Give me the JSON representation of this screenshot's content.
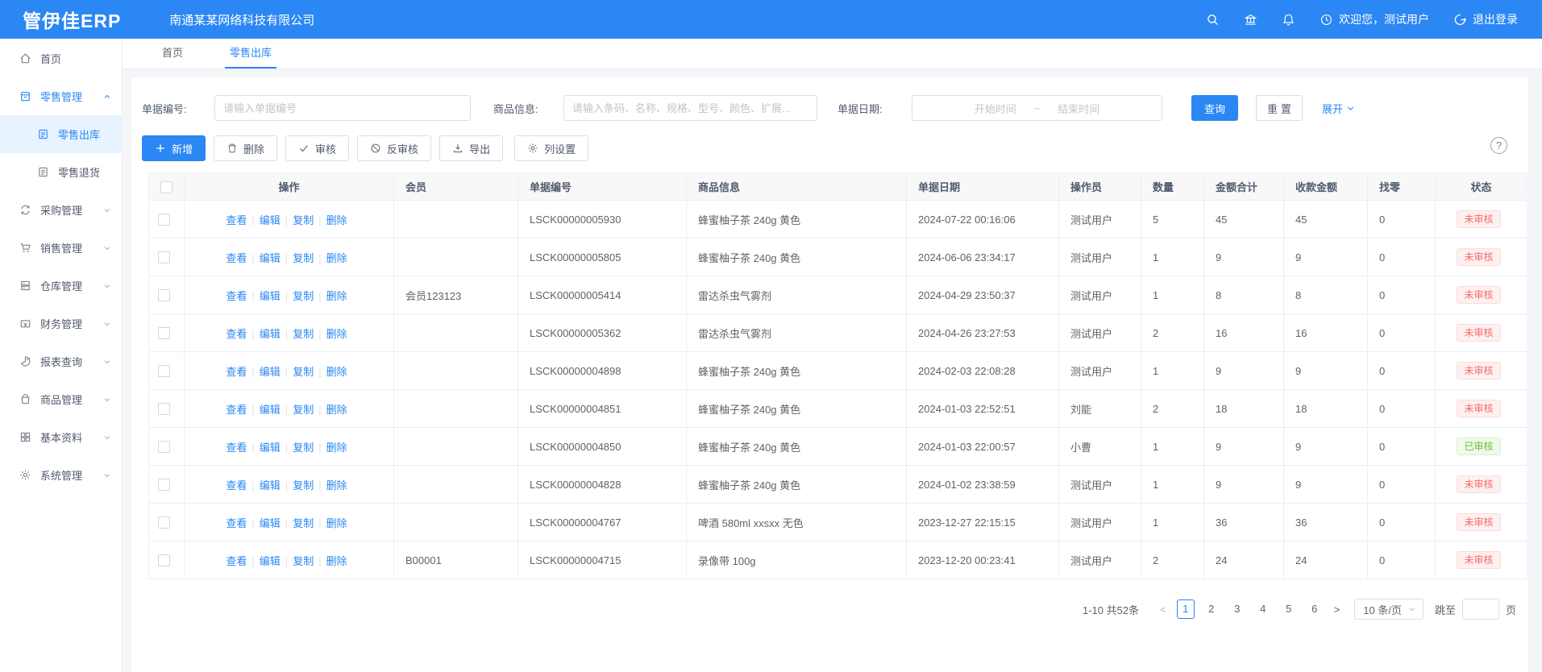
{
  "app": {
    "logo": "管伊佳ERP",
    "company": "南通某某网络科技有限公司",
    "welcome": "欢迎您，测试用户",
    "logout": "退出登录"
  },
  "tabs": [
    {
      "label": "首页",
      "active": false
    },
    {
      "label": "零售出库",
      "active": true
    }
  ],
  "sidebar": {
    "items": [
      {
        "label": "首页",
        "icon": "home",
        "caret": "none"
      },
      {
        "label": "零售管理",
        "icon": "shop",
        "caret": "up",
        "parent_active": true,
        "children": [
          {
            "label": "零售出库",
            "icon": "doc",
            "active": true
          },
          {
            "label": "零售退货",
            "icon": "doc",
            "active": false
          }
        ]
      },
      {
        "label": "采购管理",
        "icon": "sync",
        "caret": "down"
      },
      {
        "label": "销售管理",
        "icon": "cart",
        "caret": "down"
      },
      {
        "label": "仓库管理",
        "icon": "archive",
        "caret": "down"
      },
      {
        "label": "财务管理",
        "icon": "wallet",
        "caret": "down"
      },
      {
        "label": "报表查询",
        "icon": "pie",
        "caret": "down"
      },
      {
        "label": "商品管理",
        "icon": "bag",
        "caret": "down"
      },
      {
        "label": "基本资料",
        "icon": "grid",
        "caret": "down"
      },
      {
        "label": "系统管理",
        "icon": "gear",
        "caret": "down"
      }
    ]
  },
  "filters": {
    "bill_no_label": "单据编号:",
    "bill_no_placeholder": "请输入单据编号",
    "product_label": "商品信息:",
    "product_placeholder": "请输入条码、名称、规格、型号、颜色、扩展...",
    "date_label": "单据日期:",
    "date_start_placeholder": "开始时间",
    "date_separator": "~",
    "date_end_placeholder": "结束时间",
    "search_label": "查询",
    "reset_label": "重置",
    "expand_label": "展开"
  },
  "toolbar": {
    "add": "新增",
    "delete": "删除",
    "audit": "审核",
    "unaudit": "反审核",
    "export": "导出",
    "columns": "列设置",
    "help": "?"
  },
  "table": {
    "headers": [
      "操作",
      "会员",
      "单据编号",
      "商品信息",
      "单据日期",
      "操作员",
      "数量",
      "金额合计",
      "收款金额",
      "找零",
      "状态"
    ],
    "row_actions": [
      "查看",
      "编辑",
      "复制",
      "删除"
    ],
    "rows": [
      {
        "member": "",
        "bill_no": "LSCK00000005930",
        "product": "蜂蜜柚子茶 240g 黄色",
        "date": "2024-07-22 00:16:06",
        "operator": "测试用户",
        "qty": "5",
        "amount": "45",
        "received": "45",
        "change": "0",
        "status": "未审核",
        "status_type": "red"
      },
      {
        "member": "",
        "bill_no": "LSCK00000005805",
        "product": "蜂蜜柚子茶 240g 黄色",
        "date": "2024-06-06 23:34:17",
        "operator": "测试用户",
        "qty": "1",
        "amount": "9",
        "received": "9",
        "change": "0",
        "status": "未审核",
        "status_type": "red"
      },
      {
        "member": "会员123123",
        "bill_no": "LSCK00000005414",
        "product": "雷达杀虫气雾剂",
        "date": "2024-04-29 23:50:37",
        "operator": "测试用户",
        "qty": "1",
        "amount": "8",
        "received": "8",
        "change": "0",
        "status": "未审核",
        "status_type": "red"
      },
      {
        "member": "",
        "bill_no": "LSCK00000005362",
        "product": "雷达杀虫气雾剂",
        "date": "2024-04-26 23:27:53",
        "operator": "测试用户",
        "qty": "2",
        "amount": "16",
        "received": "16",
        "change": "0",
        "status": "未审核",
        "status_type": "red"
      },
      {
        "member": "",
        "bill_no": "LSCK00000004898",
        "product": "蜂蜜柚子茶 240g 黄色",
        "date": "2024-02-03 22:08:28",
        "operator": "测试用户",
        "qty": "1",
        "amount": "9",
        "received": "9",
        "change": "0",
        "status": "未审核",
        "status_type": "red"
      },
      {
        "member": "",
        "bill_no": "LSCK00000004851",
        "product": "蜂蜜柚子茶 240g 黄色",
        "date": "2024-01-03 22:52:51",
        "operator": "刘能",
        "qty": "2",
        "amount": "18",
        "received": "18",
        "change": "0",
        "status": "未审核",
        "status_type": "red"
      },
      {
        "member": "",
        "bill_no": "LSCK00000004850",
        "product": "蜂蜜柚子茶 240g 黄色",
        "date": "2024-01-03 22:00:57",
        "operator": "小曹",
        "qty": "1",
        "amount": "9",
        "received": "9",
        "change": "0",
        "status": "已审核",
        "status_type": "green"
      },
      {
        "member": "",
        "bill_no": "LSCK00000004828",
        "product": "蜂蜜柚子茶 240g 黄色",
        "date": "2024-01-02 23:38:59",
        "operator": "测试用户",
        "qty": "1",
        "amount": "9",
        "received": "9",
        "change": "0",
        "status": "未审核",
        "status_type": "red"
      },
      {
        "member": "",
        "bill_no": "LSCK00000004767",
        "product": "啤酒 580ml xxsxx 无色",
        "date": "2023-12-27 22:15:15",
        "operator": "测试用户",
        "qty": "1",
        "amount": "36",
        "received": "36",
        "change": "0",
        "status": "未审核",
        "status_type": "red"
      },
      {
        "member": "B00001",
        "bill_no": "LSCK00000004715",
        "product": "录像带 100g",
        "date": "2023-12-20 00:23:41",
        "operator": "测试用户",
        "qty": "2",
        "amount": "24",
        "received": "24",
        "change": "0",
        "status": "未审核",
        "status_type": "red"
      }
    ]
  },
  "pagination": {
    "total": "1-10 共52条",
    "prev": "<",
    "next": ">",
    "pages": [
      "1",
      "2",
      "3",
      "4",
      "5",
      "6"
    ],
    "current": "1",
    "page_size": "10 条/页",
    "jump_label": "跳至",
    "jump_unit": "页"
  },
  "colors": {
    "primary": "#2b87f3",
    "sidebar_active_bg": "#e7f3ff",
    "status_red_text": "#f56c6c",
    "status_red_bg": "#fef0f0",
    "status_green_text": "#67c23a",
    "status_green_bg": "#f0f9eb",
    "border": "#ebeef5",
    "header_bg": "#f8f8f9"
  }
}
